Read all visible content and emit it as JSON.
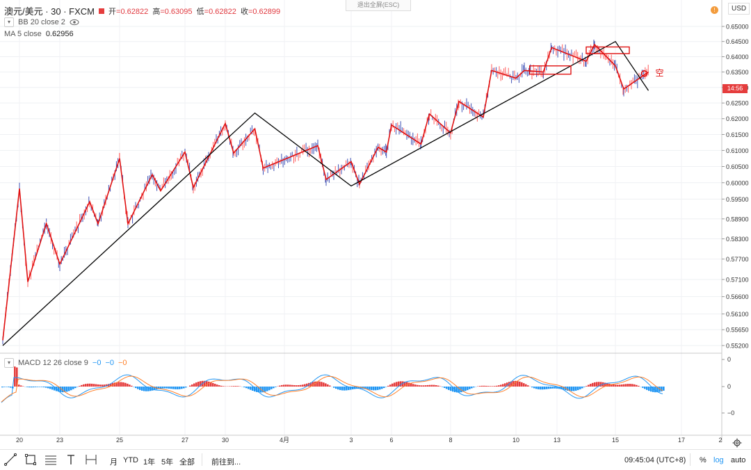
{
  "header": {
    "symbol": "澳元/美元 · 30 · FXCM",
    "ohlc": [
      {
        "label": "开",
        "value": "=0.62822"
      },
      {
        "label": "高",
        "value": "=0.63095"
      },
      {
        "label": "低",
        "value": "=0.62822"
      },
      {
        "label": "收",
        "value": "=0.62899"
      }
    ],
    "esc_hint": "退出全屏(ESC)",
    "currency": "USD",
    "alert_icon": "!"
  },
  "indicators": {
    "bb": "BB 20 close 2",
    "ma_label": "MA 5 close",
    "ma_value": "0.62956",
    "macd_label": "MACD 12 26 close 9",
    "macd_values": [
      "−0",
      "−0",
      "−0"
    ],
    "macd_value_colors": [
      "#2196f3",
      "#2196f3",
      "#ff7f27"
    ]
  },
  "current_price_time": "14:56",
  "annotation_text": "空",
  "colors": {
    "up": "#ff5b5b",
    "down": "#3f51b5",
    "zigzag": "#e01010",
    "trend": "#000000",
    "macd_line": "#2196f3",
    "signal_line": "#ff7f27",
    "hist_pos": "#e53d3d",
    "hist_neg": "#2196f3"
  },
  "chart_data": {
    "type": "line",
    "title": "澳元/美元 · 30 · FXCM",
    "price_axis": {
      "scale": "log",
      "ticks": [
        "0.65000",
        "0.64500",
        "0.64000",
        "0.63500",
        "0.63000",
        "0.62500",
        "0.62000",
        "0.61500",
        "0.61000",
        "0.60500",
        "0.60000",
        "0.59500",
        "0.58900",
        "0.58300",
        "0.57700",
        "0.57100",
        "0.56600",
        "0.56100",
        "0.55650",
        "0.55200"
      ]
    },
    "x_ticks": [
      "20",
      "23",
      "25",
      "27",
      "30",
      "4月",
      "3",
      "6",
      "8",
      "10",
      "13",
      "15",
      "17",
      "2"
    ],
    "series": [
      {
        "kind": "zigzag",
        "x": [
          "3/19",
          "3/20",
          "3/20",
          "3/22",
          "3/23",
          "3/24",
          "3/24",
          "3/25",
          "3/25",
          "3/26",
          "3/26",
          "3/27",
          "3/27",
          "3/30",
          "3/30",
          "3/31",
          "3/31",
          "4/2",
          "4/2",
          "4/3",
          "4/3",
          "4/5",
          "4/5",
          "4/6",
          "4/7",
          "4/7",
          "4/8",
          "4/8",
          "4/9",
          "4/9",
          "4/10",
          "4/10",
          "4/12",
          "4/12",
          "4/14",
          "4/14",
          "4/15",
          "4/15",
          "4/16"
        ],
        "y": [
          0.5535,
          0.5982,
          0.5703,
          0.5876,
          0.5755,
          0.5942,
          0.5875,
          0.6075,
          0.5875,
          0.6025,
          0.5975,
          0.6095,
          0.5985,
          0.6185,
          0.6092,
          0.6168,
          0.6045,
          0.6115,
          0.601,
          0.6065,
          0.5995,
          0.611,
          0.6095,
          0.618,
          0.612,
          0.6215,
          0.6155,
          0.6255,
          0.6205,
          0.6355,
          0.633,
          0.6355,
          0.635,
          0.643,
          0.6385,
          0.644,
          0.637,
          0.6295,
          0.635
        ]
      },
      {
        "kind": "trendline",
        "x": [
          "3/19",
          "3/31",
          "4/3",
          "4/15",
          "4/16"
        ],
        "y": [
          0.552,
          0.6218,
          0.599,
          0.645,
          0.629
        ]
      }
    ],
    "boxes": [
      {
        "x": [
          "4/11",
          "4/13"
        ],
        "y": [
          0.6343,
          0.637
        ]
      },
      {
        "x": [
          "4/14",
          "4/15"
        ],
        "y": [
          0.641,
          0.6432
        ]
      }
    ],
    "macd": {
      "ylim": [
        -1,
        1
      ],
      "y_ticks": [
        "0",
        "0",
        "−0"
      ],
      "note": "MACD 12 26 close 9"
    }
  },
  "toolbar": {
    "ranges": [
      "月",
      "YTD",
      "1年",
      "5年",
      "全部"
    ],
    "goto": "前往到...",
    "clock": "09:45:04 (UTC+8)",
    "pct": "%",
    "log": "log",
    "auto": "auto"
  }
}
